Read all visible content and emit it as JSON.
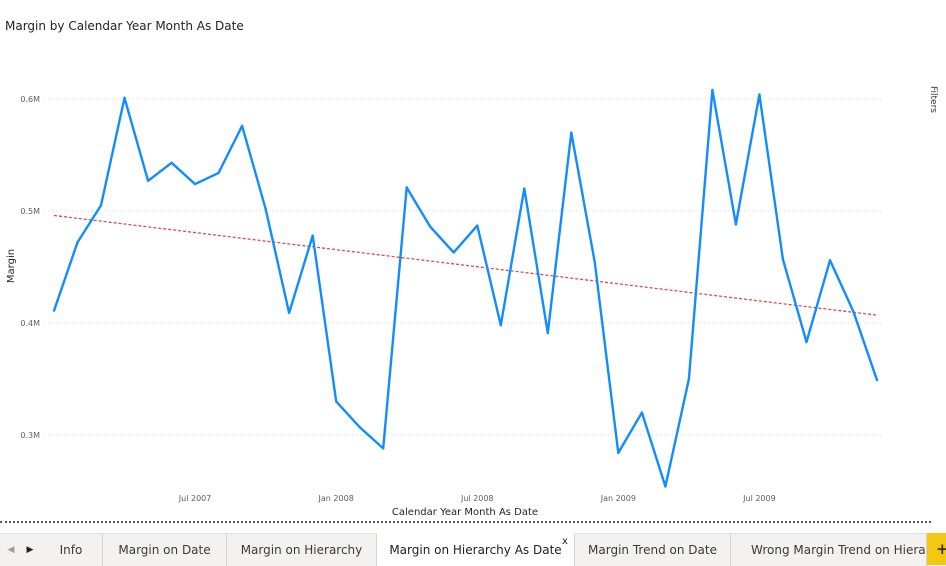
{
  "visual": {
    "title": "Margin by Calendar Year Month As Date"
  },
  "colors": {
    "line": "#118dff",
    "trend": "#e04b4b",
    "grid": "#d9d9d9",
    "axis_text": "#605e5c",
    "active_tab_bg": "#ffffff",
    "add_button": "#f2c811"
  },
  "chart_data": {
    "type": "line",
    "title": "Margin by Calendar Year Month As Date",
    "xlabel": "Calendar Year Month As Date",
    "ylabel": "Margin",
    "x_tick_labels": [
      "Jul 2007",
      "Jan 2008",
      "Jul 2008",
      "Jan 2009",
      "Jul 2009"
    ],
    "y_tick_labels": [
      "0.3M",
      "0.4M",
      "0.5M",
      "0.6M"
    ],
    "ylim": [
      270000,
      620000
    ],
    "grid": "horizontal dotted",
    "series": [
      {
        "x": [
          "2007-01",
          "2007-02",
          "2007-03",
          "2007-04",
          "2007-05",
          "2007-06",
          "2007-07",
          "2007-08",
          "2007-09",
          "2007-10",
          "2007-11",
          "2007-12",
          "2008-01",
          "2008-02",
          "2008-03",
          "2008-04",
          "2008-05",
          "2008-06",
          "2008-07",
          "2008-08",
          "2008-09",
          "2008-10",
          "2008-11",
          "2008-12",
          "2009-01",
          "2009-02",
          "2009-03",
          "2009-04",
          "2009-05",
          "2009-06",
          "2009-07",
          "2009-08",
          "2009-09",
          "2009-10",
          "2009-11",
          "2009-12"
        ],
        "values": [
          411000,
          472000,
          505000,
          601000,
          527000,
          543000,
          524000,
          534000,
          576000,
          502000,
          409000,
          478000,
          330000,
          307000,
          288000,
          521000,
          486000,
          463000,
          487000,
          398000,
          520000,
          391000,
          570000,
          454000,
          284000,
          320000,
          254000,
          350000,
          608000,
          488000,
          604000,
          457000,
          383000,
          456000,
          410000,
          349000
        ]
      }
    ],
    "trendline": {
      "start": 496000,
      "end": 407000
    }
  },
  "right_panel": {
    "label": "Filters"
  },
  "tabbar": {
    "prev_glyph": "◀",
    "next_glyph": "▶",
    "tabs": [
      {
        "label": "Info"
      },
      {
        "label": "Margin on Date"
      },
      {
        "label": "Margin on Hierarchy"
      },
      {
        "label": "Margin on Hierarchy As Date",
        "active": true
      },
      {
        "label": "Margin Trend on Date"
      },
      {
        "label": "Wrong Margin Trend on Hierarchy"
      }
    ],
    "close_glyph": "x",
    "add_glyph": "+"
  }
}
